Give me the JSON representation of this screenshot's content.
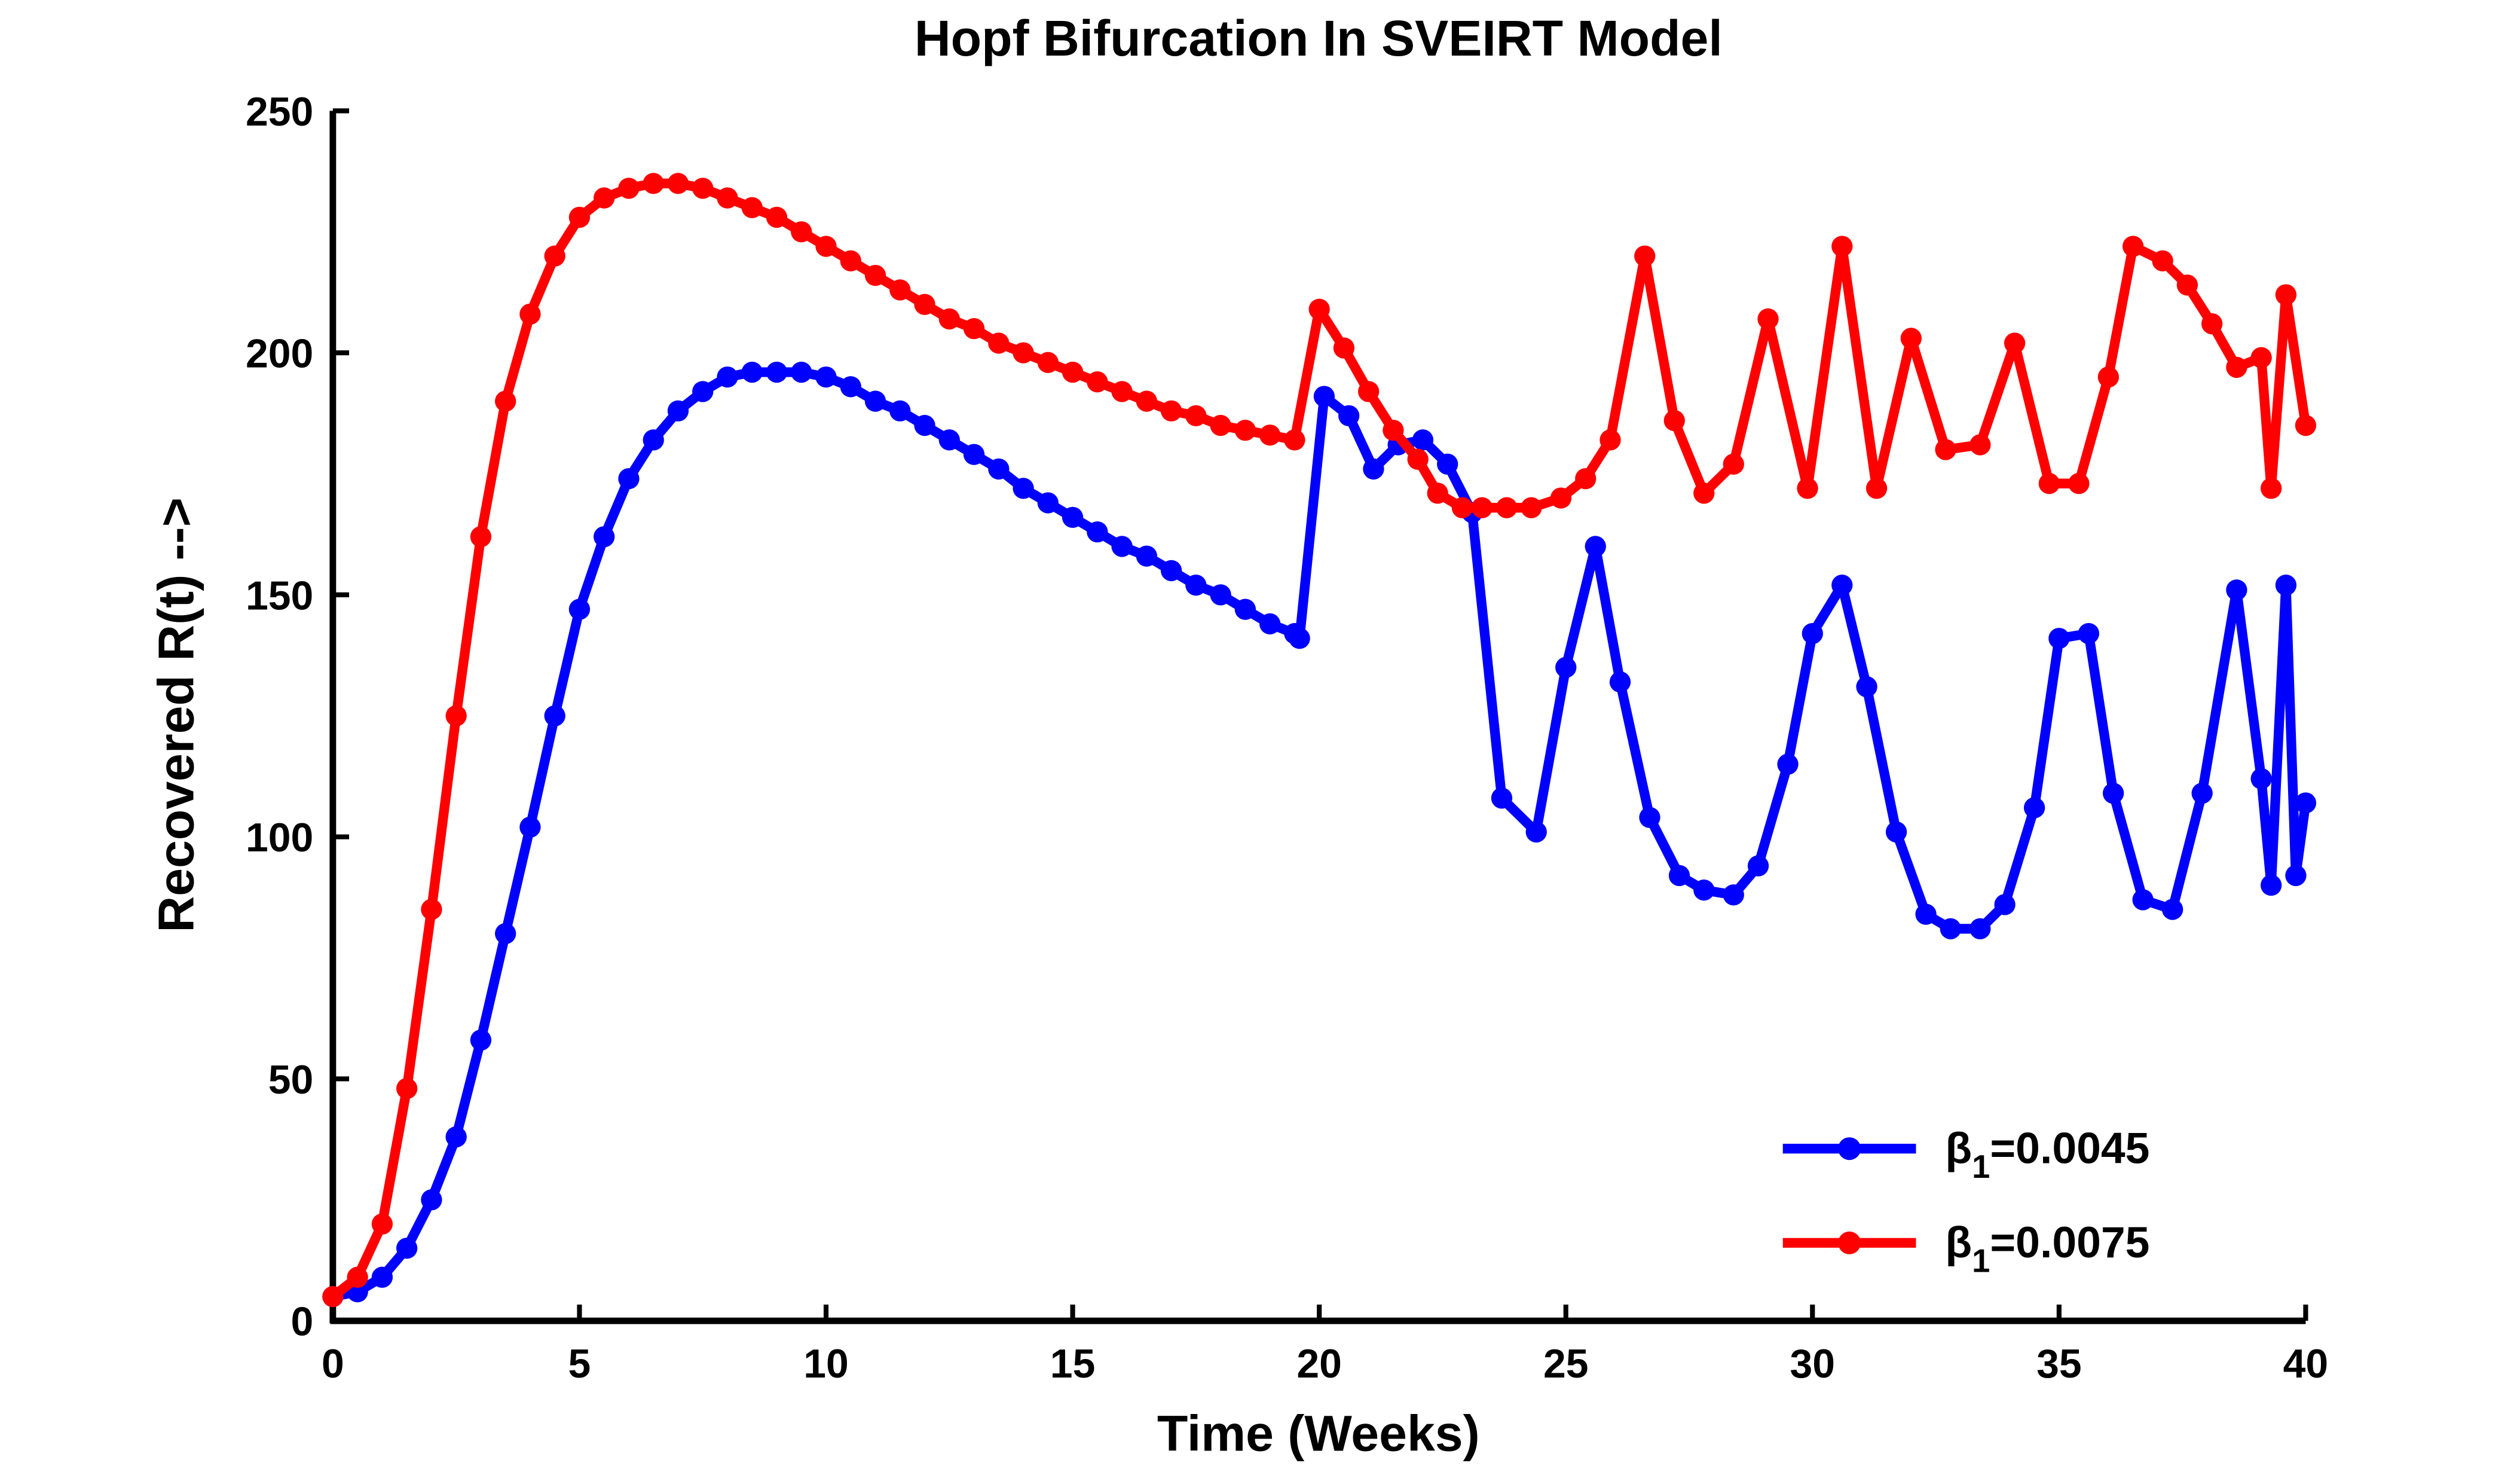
{
  "chart_data": {
    "type": "line",
    "title": "Hopf Bifurcation In SVEIRT Model",
    "x_label": "Time (Weeks)",
    "y_label": "Recovered R(t)  -->",
    "xlim": [
      0,
      40
    ],
    "ylim": [
      0,
      250
    ],
    "xticks": [
      0,
      5,
      10,
      15,
      20,
      25,
      30,
      35,
      40
    ],
    "yticks": [
      0,
      50,
      100,
      150,
      200,
      250
    ],
    "legend": "lower right",
    "series": [
      {
        "name": "β1=0.0045",
        "color": "#0000ff",
        "x": [
          0,
          0.5,
          1,
          1.5,
          2,
          2.5,
          3,
          3.5,
          4,
          4.5,
          5,
          5.5,
          6,
          6.5,
          7,
          7.5,
          8,
          8.5,
          9,
          9.5,
          10,
          10.5,
          11,
          11.5,
          12,
          12.5,
          13,
          13.5,
          14,
          14.5,
          15,
          15.5,
          16,
          16.5,
          17,
          17.5,
          18,
          18.5,
          19,
          19.5,
          19.6,
          20.1,
          20.6,
          21.1,
          21.6,
          22.1,
          22.6,
          23.1,
          23.7,
          24.4,
          25.0,
          25.6,
          26.1,
          26.7,
          27.3,
          27.8,
          28.4,
          28.9,
          29.5,
          30.0,
          30.6,
          31.1,
          31.7,
          32.3,
          32.8,
          33.4,
          33.9,
          34.5,
          35.0,
          35.6,
          36.1,
          36.7,
          37.3,
          37.9,
          38.6,
          39.1,
          39.3,
          39.6,
          39.8,
          40.0
        ],
        "values": [
          5,
          6,
          9,
          15,
          25,
          38,
          58,
          80,
          102,
          125,
          147,
          162,
          174,
          182,
          188,
          192,
          195,
          196,
          196,
          196,
          195,
          193,
          190,
          188,
          185,
          182,
          179,
          176,
          172,
          169,
          166,
          163,
          160,
          158,
          155,
          152,
          150,
          147,
          144,
          142,
          141,
          191,
          187,
          176,
          181,
          182,
          177,
          167,
          108,
          101,
          135,
          160,
          132,
          104,
          92,
          89,
          88,
          94,
          115,
          142,
          152,
          131,
          101,
          84,
          81,
          81,
          86,
          106,
          141,
          142,
          109,
          87,
          85,
          109,
          151,
          112,
          90,
          152,
          92,
          107
        ]
      },
      {
        "name": "β1=0.0075",
        "color": "#ff0000",
        "x": [
          0,
          0.5,
          1,
          1.5,
          2,
          2.5,
          3,
          3.5,
          4,
          4.5,
          5,
          5.5,
          6,
          6.5,
          7,
          7.5,
          8,
          8.5,
          9,
          9.5,
          10,
          10.5,
          11,
          11.5,
          12,
          12.5,
          13,
          13.5,
          14,
          14.5,
          15,
          15.5,
          16,
          16.5,
          17,
          17.5,
          18,
          18.5,
          19,
          19.5,
          20.0,
          20.5,
          21.0,
          21.5,
          22.0,
          22.4,
          22.9,
          23.3,
          23.8,
          24.3,
          24.9,
          25.4,
          25.9,
          26.6,
          27.2,
          27.8,
          28.4,
          29.1,
          29.9,
          30.6,
          31.3,
          32.0,
          32.7,
          33.4,
          34.1,
          34.8,
          35.4,
          36.0,
          36.5,
          37.1,
          37.6,
          38.1,
          38.6,
          39.1,
          39.3,
          39.6,
          40.0
        ],
        "values": [
          5,
          9,
          20,
          48,
          85,
          125,
          162,
          190,
          208,
          220,
          228,
          232,
          234,
          235,
          235,
          234,
          232,
          230,
          228,
          225,
          222,
          219,
          216,
          213,
          210,
          207,
          205,
          202,
          200,
          198,
          196,
          194,
          192,
          190,
          188,
          187,
          185,
          184,
          183,
          182,
          209,
          201,
          192,
          184,
          178,
          171,
          168,
          168,
          168,
          168,
          170,
          174,
          182,
          220,
          186,
          171,
          177,
          207,
          172,
          222,
          172,
          203,
          180,
          181,
          202,
          173,
          173,
          195,
          222,
          219,
          214,
          206,
          197,
          199,
          172,
          212,
          185
        ]
      }
    ]
  }
}
